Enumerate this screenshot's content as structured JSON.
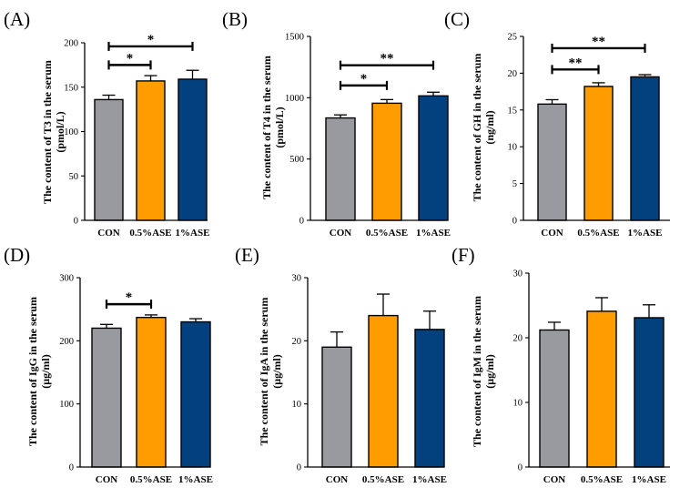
{
  "colors": {
    "CON": "#999aa0",
    "0.5%ASE": "#ff9d00",
    "1%ASE": "#02417e"
  },
  "chart_data": [
    {
      "type": "bar",
      "panel": "(A)",
      "categories": [
        "CON",
        "0.5%ASE",
        "1%ASE"
      ],
      "values": [
        136,
        157,
        159
      ],
      "errors": [
        5,
        6,
        10
      ],
      "ylim": [
        0,
        200
      ],
      "yticks": [
        0,
        50,
        100,
        150,
        200
      ],
      "ylabel_line1": "The content of T3 in the serum",
      "ylabel_line2": "(pmol/L)",
      "significance": [
        {
          "from": 0,
          "to": 1,
          "label": "*",
          "y": 175
        },
        {
          "from": 0,
          "to": 2,
          "label": "*",
          "y": 196
        }
      ]
    },
    {
      "type": "bar",
      "panel": "(B)",
      "categories": [
        "CON",
        "0.5%ASE",
        "1%ASE"
      ],
      "values": [
        835,
        955,
        1015
      ],
      "errors": [
        25,
        30,
        30
      ],
      "ylim": [
        0,
        1500
      ],
      "yticks": [
        0,
        500,
        1000,
        1500
      ],
      "ylabel_line1": "The content of T4 in the serum",
      "ylabel_line2": "(pmol/L)",
      "significance": [
        {
          "from": 0,
          "to": 1,
          "label": "*",
          "y": 1100
        },
        {
          "from": 0,
          "to": 2,
          "label": "**",
          "y": 1265
        }
      ]
    },
    {
      "type": "bar",
      "panel": "(C)",
      "categories": [
        "CON",
        "0.5%ASE",
        "1%ASE"
      ],
      "values": [
        15.8,
        18.2,
        19.5
      ],
      "errors": [
        0.6,
        0.5,
        0.3
      ],
      "ylim": [
        0,
        25
      ],
      "yticks": [
        0,
        5,
        10,
        15,
        20,
        25
      ],
      "ylabel_line1": "The content of GH in the serum",
      "ylabel_line2": "(ng/ml)",
      "significance": [
        {
          "from": 0,
          "to": 1,
          "label": "**",
          "y": 20.5
        },
        {
          "from": 0,
          "to": 2,
          "label": "**",
          "y": 23.4
        }
      ]
    },
    {
      "type": "bar",
      "panel": "(D)",
      "categories": [
        "CON",
        "0.5%ASE",
        "1%ASE"
      ],
      "values": [
        220,
        237,
        230
      ],
      "errors": [
        6,
        4,
        5
      ],
      "ylim": [
        0,
        300
      ],
      "yticks": [
        0,
        100,
        200,
        300
      ],
      "ylabel_line1": "The content of IgG in the serum",
      "ylabel_line2": "(μg/ml)",
      "significance": [
        {
          "from": 0,
          "to": 1,
          "label": "*",
          "y": 258
        }
      ]
    },
    {
      "type": "bar",
      "panel": "(E)",
      "categories": [
        "CON",
        "0.5%ASE",
        "1%ASE"
      ],
      "values": [
        19,
        24,
        21.8
      ],
      "errors": [
        2.4,
        3.4,
        2.9
      ],
      "ylim": [
        0,
        30
      ],
      "yticks": [
        0,
        10,
        20,
        30
      ],
      "ylabel_line1": "The content of IgA in the serum",
      "ylabel_line2": "(μg/ml)",
      "significance": []
    },
    {
      "type": "bar",
      "panel": "(F)",
      "categories": [
        "CON",
        "0.5%ASE",
        "1%ASE"
      ],
      "values": [
        21.2,
        24.1,
        23.1
      ],
      "errors": [
        1.2,
        2.1,
        2.0
      ],
      "ylim": [
        0,
        30
      ],
      "yticks": [
        0,
        10,
        20,
        30
      ],
      "ylabel_line1": "The content of IgM in the serum",
      "ylabel_line2": "(μg/ml)",
      "significance": []
    }
  ]
}
